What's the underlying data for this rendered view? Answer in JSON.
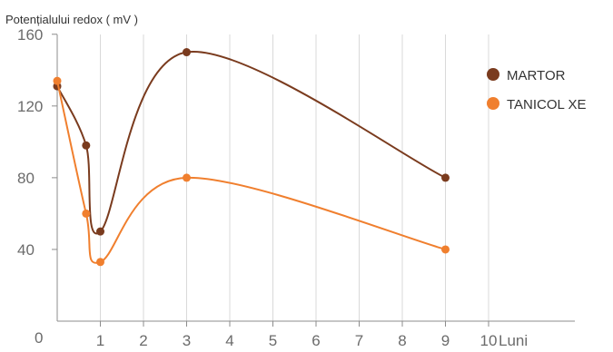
{
  "chart_data": {
    "type": "line",
    "ylabel": "Potențialului redox ( mV )",
    "xlabel": "Luni",
    "xlim": [
      0,
      12
    ],
    "ylim": [
      0,
      170
    ],
    "yticks": [
      0,
      40,
      80,
      120,
      160
    ],
    "xticks": [
      1,
      2,
      3,
      4,
      5,
      6,
      7,
      8,
      9,
      10
    ],
    "grid": "vertical",
    "legend_position": "top-right",
    "series": [
      {
        "name": "MARTOR",
        "color": "#7a3b1e",
        "x": [
          0,
          0.67,
          1,
          3,
          9
        ],
        "y": [
          131,
          98,
          50,
          150,
          80
        ]
      },
      {
        "name": "TANICOL XE",
        "color": "#f07f2e",
        "x": [
          0,
          0.67,
          1,
          3,
          9
        ],
        "y": [
          134,
          60,
          33,
          80,
          40
        ]
      }
    ]
  }
}
